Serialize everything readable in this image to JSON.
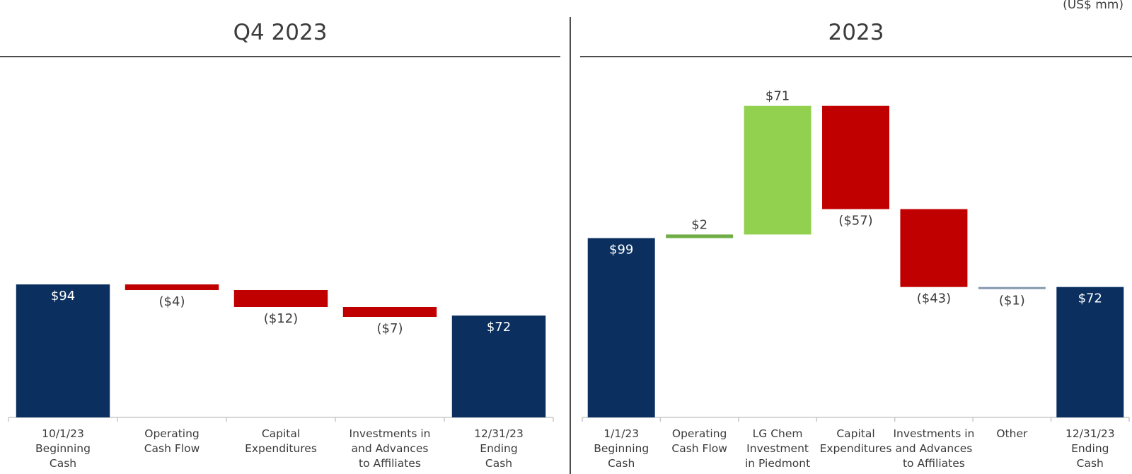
{
  "units_label": "(US$ mm)",
  "chart_data": [
    {
      "type": "waterfall",
      "title": "Q4 2023",
      "categories": [
        "10/1/23 Beginning Cash",
        "Operating Cash Flow",
        "Capital Expenditures",
        "Investments in and Advances to Affiliates",
        "12/31/23 Ending Cash"
      ],
      "category_lines": [
        [
          "10/1/23",
          "Beginning",
          "Cash"
        ],
        [
          "Operating",
          "Cash Flow"
        ],
        [
          "Capital",
          "Expenditures"
        ],
        [
          "Investments in",
          "and Advances",
          "to Affiliates"
        ],
        [
          "12/31/23",
          "Ending",
          "Cash"
        ]
      ],
      "values": [
        94,
        -4,
        -12,
        -7,
        72
      ],
      "kinds": [
        "total",
        "delta",
        "delta",
        "delta",
        "total"
      ],
      "labels": [
        "$94",
        "($4)",
        "($12)",
        "($7)",
        "$72"
      ],
      "ylim": [
        0,
        120
      ]
    },
    {
      "type": "waterfall",
      "title": "2023",
      "categories": [
        "1/1/23 Beginning Cash",
        "Operating Cash Flow",
        "LG Chem Investment in Piedmont",
        "Capital Expenditures",
        "Investments in and Advances to Affiliates",
        "Other",
        "12/31/23 Ending Cash"
      ],
      "category_lines": [
        [
          "1/1/23",
          "Beginning",
          "Cash"
        ],
        [
          "Operating",
          "Cash Flow"
        ],
        [
          "LG Chem",
          "Investment",
          "in Piedmont"
        ],
        [
          "Capital",
          "Expenditures"
        ],
        [
          "Investments in",
          "and Advances",
          "to Affiliates"
        ],
        [
          "Other"
        ],
        [
          "12/31/23",
          "Ending",
          "Cash"
        ]
      ],
      "values": [
        99,
        2,
        71,
        -57,
        -43,
        -1,
        72
      ],
      "kinds": [
        "total",
        "delta",
        "delta",
        "delta",
        "delta",
        "delta",
        "total"
      ],
      "labels": [
        "$99",
        "$2",
        "$71",
        "($57)",
        "($43)",
        "($1)",
        "$72"
      ],
      "ylim": [
        0,
        180
      ]
    }
  ],
  "colors": {
    "total": "#0b3060",
    "positive_strong": "#92d050",
    "positive_small": "#70ad47",
    "negative": "#c00000",
    "negative_small": "#8497b0",
    "axis": "#c8c8c8",
    "text": "#3b3b3b"
  }
}
